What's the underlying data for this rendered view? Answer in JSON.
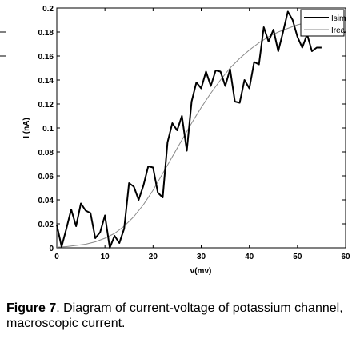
{
  "chart_data": {
    "type": "line",
    "xlabel": "v(mv)",
    "ylabel": "I (nA)",
    "xlim": [
      0,
      60
    ],
    "ylim": [
      0,
      0.2
    ],
    "xticks": [
      "0",
      "10",
      "20",
      "30",
      "40",
      "50",
      "60"
    ],
    "yticks": [
      "0",
      "0.02",
      "0.04",
      "0.06",
      "0.08",
      "0.1",
      "0.12",
      "0.14",
      "0.16",
      "0.18",
      "0.2"
    ],
    "legend_position": "top-right",
    "series": [
      {
        "name": "Isim",
        "color": "#000000",
        "style": "thick",
        "x": [
          0,
          1,
          2,
          3,
          4,
          5,
          6,
          7,
          8,
          9,
          10,
          11,
          12,
          13,
          14,
          15,
          16,
          17,
          18,
          19,
          20,
          21,
          22,
          23,
          24,
          25,
          26,
          27,
          28,
          29,
          30,
          31,
          32,
          33,
          34,
          35,
          36,
          37,
          38,
          39,
          40,
          41,
          42,
          43,
          44,
          45,
          46,
          47,
          48,
          49,
          50,
          51,
          52,
          53,
          54,
          55
        ],
        "y": [
          0.019,
          0.001,
          0.016,
          0.032,
          0.018,
          0.037,
          0.031,
          0.029,
          0.008,
          0.013,
          0.027,
          0.0,
          0.01,
          0.004,
          0.016,
          0.054,
          0.051,
          0.04,
          0.052,
          0.068,
          0.067,
          0.046,
          0.042,
          0.088,
          0.104,
          0.098,
          0.11,
          0.081,
          0.122,
          0.138,
          0.133,
          0.147,
          0.135,
          0.148,
          0.147,
          0.135,
          0.149,
          0.122,
          0.121,
          0.14,
          0.133,
          0.155,
          0.153,
          0.184,
          0.172,
          0.182,
          0.164,
          0.18,
          0.197,
          0.19,
          0.176,
          0.167,
          0.178,
          0.164,
          0.167,
          0.167
        ]
      },
      {
        "name": "Ireal",
        "color": "#888888",
        "style": "thin",
        "x": [
          0,
          2,
          4,
          6,
          8,
          10,
          12,
          14,
          16,
          18,
          20,
          22,
          24,
          26,
          28,
          30,
          32,
          34,
          36,
          38,
          40,
          42,
          44,
          46,
          48,
          50,
          52,
          54,
          55
        ],
        "y": [
          0.0005,
          0.001,
          0.002,
          0.003,
          0.005,
          0.008,
          0.012,
          0.018,
          0.026,
          0.036,
          0.048,
          0.062,
          0.076,
          0.09,
          0.104,
          0.117,
          0.129,
          0.14,
          0.15,
          0.158,
          0.165,
          0.171,
          0.176,
          0.18,
          0.183,
          0.186,
          0.188,
          0.19,
          0.19
        ]
      }
    ]
  },
  "caption": {
    "label": "Figure 7",
    "text": ". Diagram of current-voltage of potassium channel, macroscopic current."
  }
}
